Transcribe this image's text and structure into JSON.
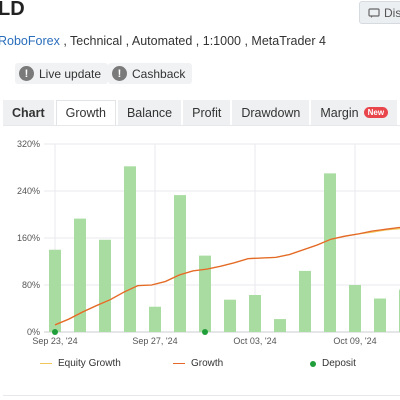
{
  "header": {
    "title": "LD",
    "discuss_label": "Disc"
  },
  "subtitle": {
    "broker": "RoboForex",
    "rest": " , Technical , Automated , 1:1000 , MetaTrader 4"
  },
  "chips": [
    {
      "label": "Live update",
      "icon": "info-icon"
    },
    {
      "label": "Cashback",
      "icon": "info-icon"
    }
  ],
  "tabs": [
    {
      "label": "Chart",
      "active": false
    },
    {
      "label": "Growth",
      "active": true
    },
    {
      "label": "Balance",
      "active": false
    },
    {
      "label": "Profit",
      "active": false
    },
    {
      "label": "Drawdown",
      "active": false
    },
    {
      "label": "Margin",
      "active": false,
      "badge": "New"
    }
  ],
  "colors": {
    "bar": "#a8dca0",
    "growth": "#e4682a",
    "equity": "#f1c75b",
    "deposit": "#1f9e3a",
    "grid": "#e8eaed"
  },
  "chart_data": {
    "type": "bar",
    "ylim": [
      0,
      320
    ],
    "y_ticks": [
      "0%",
      "80%",
      "160%",
      "240%",
      "320%"
    ],
    "y_tick_values": [
      0,
      80,
      160,
      240,
      320
    ],
    "x_tick_labels": [
      "Sep 23, '24",
      "Sep 27, '24",
      "Oct 03, '24",
      "Oct 09, '24"
    ],
    "x_tick_index": [
      0,
      4,
      8,
      12
    ],
    "bars": [
      140,
      193,
      157,
      282,
      43,
      233,
      130,
      55,
      63,
      22,
      104,
      270,
      80,
      57,
      72
    ],
    "growth": [
      12,
      22,
      34,
      45,
      55,
      68,
      79,
      80,
      86,
      97,
      104,
      107,
      112,
      118,
      125,
      126,
      127,
      132,
      140,
      148,
      158,
      163,
      167,
      172,
      175,
      178
    ],
    "equity_growth": [
      12,
      22,
      34,
      45,
      55,
      68,
      79,
      80,
      86,
      97,
      104,
      107,
      112,
      118,
      125,
      126,
      127,
      132,
      140,
      148,
      158,
      163,
      167,
      170,
      174,
      176
    ],
    "deposits_at_bar": [
      0,
      6
    ],
    "legend": [
      {
        "name": "Equity Growth",
        "kind": "line"
      },
      {
        "name": "Growth",
        "kind": "line"
      },
      {
        "name": "Deposit",
        "kind": "dot"
      }
    ]
  }
}
